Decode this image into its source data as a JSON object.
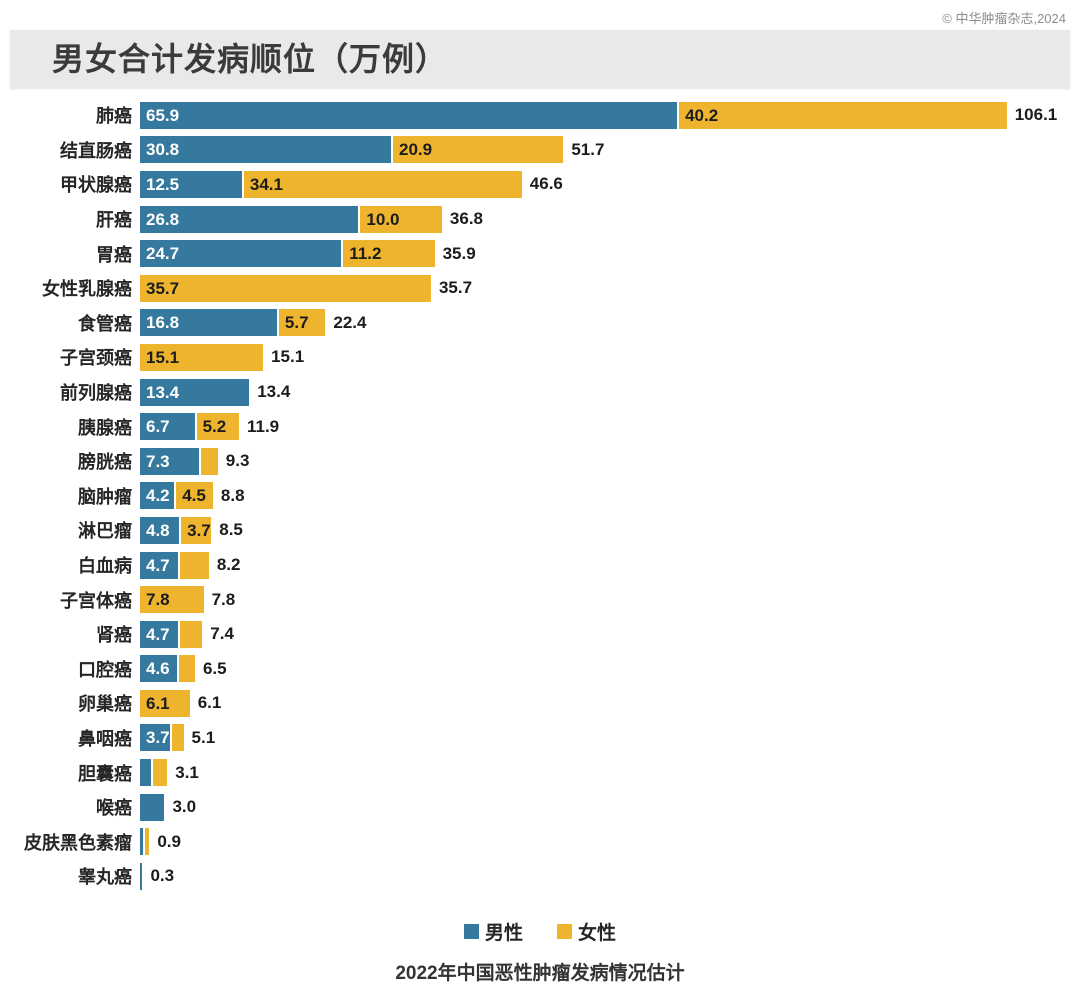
{
  "page": {
    "copyright": "© 中华肿瘤杂志,2024",
    "caption": "2022年中国恶性肿瘤发病情况估计"
  },
  "chart_data": {
    "type": "bar",
    "orientation": "horizontal",
    "stacked": true,
    "title": "男女合计发病顺位（万例）",
    "unit": "万例",
    "xlim": [
      0,
      113
    ],
    "grid": false,
    "legend_position": "bottom-center",
    "legend": [
      {
        "name": "男性",
        "color": "#36799F"
      },
      {
        "name": "女性",
        "color": "#EEB42E"
      }
    ],
    "rows": [
      {
        "label": "肺癌",
        "male": 65.9,
        "female": 40.2,
        "total": 106.1,
        "male_label": "65.9",
        "female_label": "40.2",
        "total_label": "106.1"
      },
      {
        "label": "结直肠癌",
        "male": 30.8,
        "female": 20.9,
        "total": 51.7,
        "male_label": "30.8",
        "female_label": "20.9",
        "total_label": "51.7"
      },
      {
        "label": "甲状腺癌",
        "male": 12.5,
        "female": 34.1,
        "total": 46.6,
        "male_label": "12.5",
        "female_label": "34.1",
        "total_label": "46.6"
      },
      {
        "label": "肝癌",
        "male": 26.8,
        "female": 10.0,
        "total": 36.8,
        "male_label": "26.8",
        "female_label": "10.0",
        "total_label": "36.8"
      },
      {
        "label": "胃癌",
        "male": 24.7,
        "female": 11.2,
        "total": 35.9,
        "male_label": "24.7",
        "female_label": "11.2",
        "total_label": "35.9"
      },
      {
        "label": "女性乳腺癌",
        "male": 0,
        "female": 35.7,
        "total": 35.7,
        "male_label": "",
        "female_label": "35.7",
        "total_label": "35.7"
      },
      {
        "label": "食管癌",
        "male": 16.8,
        "female": 5.7,
        "total": 22.4,
        "male_label": "16.8",
        "female_label": "5.7",
        "total_label": "22.4"
      },
      {
        "label": "子宫颈癌",
        "male": 0,
        "female": 15.1,
        "total": 15.1,
        "male_label": "",
        "female_label": "15.1",
        "total_label": "15.1"
      },
      {
        "label": "前列腺癌",
        "male": 13.4,
        "female": 0,
        "total": 13.4,
        "male_label": "13.4",
        "female_label": "",
        "total_label": "13.4"
      },
      {
        "label": "胰腺癌",
        "male": 6.7,
        "female": 5.2,
        "total": 11.9,
        "male_label": "6.7",
        "female_label": "5.2",
        "total_label": "11.9"
      },
      {
        "label": "膀胱癌",
        "male": 7.3,
        "female": 2.0,
        "total": 9.3,
        "male_label": "7.3",
        "female_label": "",
        "total_label": "9.3"
      },
      {
        "label": "脑肿瘤",
        "male": 4.2,
        "female": 4.5,
        "total": 8.8,
        "male_label": "4.2",
        "female_label": "4.5",
        "total_label": "8.8"
      },
      {
        "label": "淋巴瘤",
        "male": 4.8,
        "female": 3.7,
        "total": 8.5,
        "male_label": "4.8",
        "female_label": "3.7",
        "total_label": "8.5"
      },
      {
        "label": "白血病",
        "male": 4.7,
        "female": 3.5,
        "total": 8.2,
        "male_label": "4.7",
        "female_label": "",
        "total_label": "8.2"
      },
      {
        "label": "子宫体癌",
        "male": 0,
        "female": 7.8,
        "total": 7.8,
        "male_label": "",
        "female_label": "7.8",
        "total_label": "7.8"
      },
      {
        "label": "肾癌",
        "male": 4.7,
        "female": 2.7,
        "total": 7.4,
        "male_label": "4.7",
        "female_label": "",
        "total_label": "7.4"
      },
      {
        "label": "口腔癌",
        "male": 4.6,
        "female": 1.9,
        "total": 6.5,
        "male_label": "4.6",
        "female_label": "",
        "total_label": "6.5"
      },
      {
        "label": "卵巢癌",
        "male": 0,
        "female": 6.1,
        "total": 6.1,
        "male_label": "",
        "female_label": "6.1",
        "total_label": "6.1"
      },
      {
        "label": "鼻咽癌",
        "male": 3.7,
        "female": 1.4,
        "total": 5.1,
        "male_label": "3.7",
        "female_label": "",
        "total_label": "5.1"
      },
      {
        "label": "胆囊癌",
        "male": 1.4,
        "female": 1.7,
        "total": 3.1,
        "male_label": "",
        "female_label": "",
        "total_label": "3.1"
      },
      {
        "label": "喉癌",
        "male": 3.0,
        "female": 0,
        "total": 3.0,
        "male_label": "",
        "female_label": "",
        "total_label": "3.0"
      },
      {
        "label": "皮肤黑色素瘤",
        "male": 0.4,
        "female": 0.5,
        "total": 0.9,
        "male_label": "",
        "female_label": "",
        "total_label": "0.9"
      },
      {
        "label": "睾丸癌",
        "male": 0.3,
        "female": 0,
        "total": 0.3,
        "male_label": "",
        "female_label": "",
        "total_label": "0.3"
      }
    ]
  }
}
